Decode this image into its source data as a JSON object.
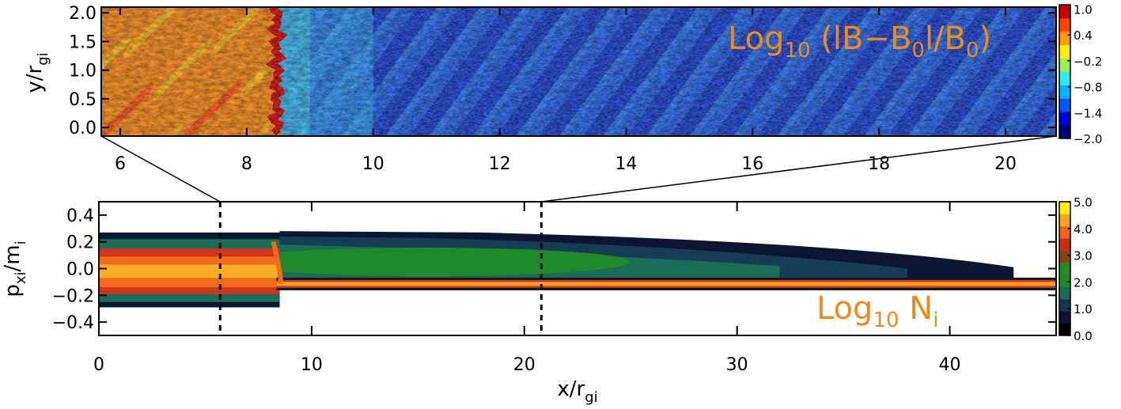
{
  "chart_data": [
    {
      "type": "heatmap",
      "panel": "top",
      "annotation": {
        "prefix": "Log",
        "sub": "10",
        "body_a": " (lB−B",
        "sub2": "0",
        "body_b": "l/B",
        "sub3": "0",
        "body_c": ")"
      },
      "xlim": [
        5.7,
        20.8
      ],
      "ylim": [
        -0.15,
        2.1
      ],
      "xticks": [
        6,
        8,
        10,
        12,
        14,
        16,
        18,
        20
      ],
      "yticks": [
        0.0,
        0.5,
        1.0,
        1.5,
        2.0
      ],
      "ytick_labels": [
        "0.0",
        "0.5",
        "1.0",
        "1.5",
        "2.0"
      ],
      "ylabel": {
        "main": "y/r",
        "sub": "gi"
      },
      "shock_x": 8.5,
      "upstream_level": -1.7,
      "downstream_level": 0.35,
      "stripe_direction": "diagonal",
      "colorbar": {
        "range": [
          -2.0,
          1.1
        ],
        "tick_values": [
          1.0,
          0.4,
          -0.2,
          -0.8,
          -1.4,
          -2.0
        ],
        "tick_labels": [
          "1.0",
          "0.4",
          "−0.2",
          "−0.8",
          "−1.4",
          "−2.0"
        ],
        "colormap": [
          "#00007a",
          "#0000d8",
          "#0055ff",
          "#00b4ff",
          "#22eeee",
          "#99ee55",
          "#ffee00",
          "#ff9c00",
          "#ff4400",
          "#c80000"
        ]
      }
    },
    {
      "type": "heatmap",
      "panel": "bottom",
      "annotation": {
        "prefix": "Log",
        "sub": "10",
        "body": " N",
        "sub2": "i"
      },
      "xlim": [
        0,
        45
      ],
      "ylim": [
        -0.5,
        0.5
      ],
      "xticks": [
        0,
        10,
        20,
        30,
        40
      ],
      "yticks": [
        -0.4,
        -0.2,
        0.0,
        0.2,
        0.4
      ],
      "ytick_labels": [
        "−0.4",
        "−0.2",
        "0.0",
        "0.2",
        "0.4"
      ],
      "xlabel": {
        "main": "x/r",
        "sub": "gi"
      },
      "ylabel": {
        "main": "p",
        "sub": "xi",
        "main2": "/m",
        "sub2": "i"
      },
      "zoom_region": [
        5.7,
        20.8
      ],
      "shock_x": 8.5,
      "beam_p": -0.115,
      "halo_end_x": 43.0,
      "colorbar": {
        "range": [
          0.0,
          5.0
        ],
        "tick_values": [
          5.0,
          4.0,
          3.0,
          2.0,
          1.0,
          0.0
        ],
        "tick_labels": [
          "5.0",
          "4.0",
          "3.0",
          "2.0",
          "1.0",
          "0.0"
        ],
        "colormap": [
          "#000000",
          "#0b1330",
          "#14364e",
          "#1a6b56",
          "#1d8a2a",
          "#2a8a22",
          "#8a4410",
          "#d22a10",
          "#f06418",
          "#f8a41c",
          "#fff000"
        ]
      }
    }
  ]
}
